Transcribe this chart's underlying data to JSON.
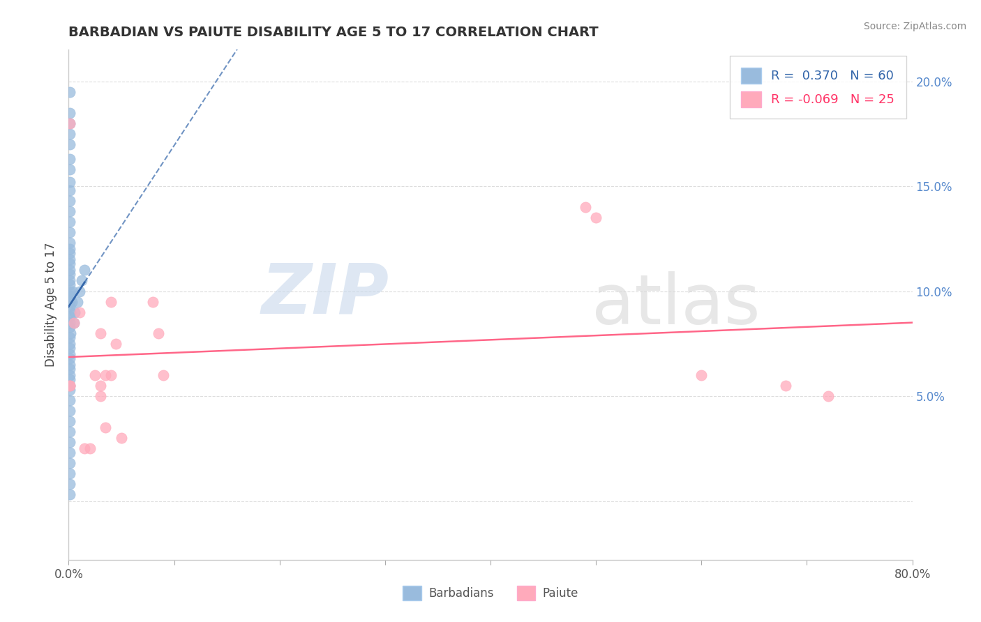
{
  "title": "BARBADIAN VS PAIUTE DISABILITY AGE 5 TO 17 CORRELATION CHART",
  "source_text": "Source: ZipAtlas.com",
  "ylabel": "Disability Age 5 to 17",
  "xlim": [
    0.0,
    0.8
  ],
  "ylim": [
    -0.028,
    0.215
  ],
  "yticks": [
    0.0,
    0.05,
    0.1,
    0.15,
    0.2
  ],
  "ytick_labels": [
    "",
    "5.0%",
    "10.0%",
    "15.0%",
    "20.0%"
  ],
  "xticks": [
    0.0,
    0.1,
    0.2,
    0.3,
    0.4,
    0.5,
    0.6,
    0.7,
    0.8
  ],
  "blue_R": 0.37,
  "blue_N": 60,
  "pink_R": -0.069,
  "pink_N": 25,
  "blue_color": "#99BBDD",
  "pink_color": "#FFAABB",
  "blue_line_color": "#3366AA",
  "pink_line_color": "#FF6688",
  "watermark_color": "#E8EEF5",
  "blue_dots_x": [
    0.001,
    0.001,
    0.001,
    0.001,
    0.001,
    0.001,
    0.001,
    0.001,
    0.001,
    0.001,
    0.001,
    0.001,
    0.001,
    0.001,
    0.001,
    0.001,
    0.001,
    0.001,
    0.001,
    0.001,
    0.001,
    0.001,
    0.001,
    0.001,
    0.001,
    0.001,
    0.001,
    0.001,
    0.001,
    0.001,
    0.001,
    0.001,
    0.001,
    0.001,
    0.001,
    0.001,
    0.001,
    0.001,
    0.001,
    0.001,
    0.001,
    0.001,
    0.001,
    0.001,
    0.001,
    0.001,
    0.001,
    0.001,
    0.001,
    0.001,
    0.002,
    0.002,
    0.003,
    0.004,
    0.005,
    0.006,
    0.008,
    0.01,
    0.012,
    0.015
  ],
  "blue_dots_y": [
    0.195,
    0.185,
    0.18,
    0.175,
    0.17,
    0.163,
    0.158,
    0.152,
    0.148,
    0.143,
    0.138,
    0.133,
    0.128,
    0.123,
    0.118,
    0.113,
    0.108,
    0.103,
    0.098,
    0.093,
    0.088,
    0.083,
    0.078,
    0.073,
    0.068,
    0.063,
    0.058,
    0.053,
    0.048,
    0.043,
    0.038,
    0.033,
    0.028,
    0.023,
    0.018,
    0.013,
    0.008,
    0.003,
    0.075,
    0.07,
    0.065,
    0.06,
    0.055,
    0.085,
    0.095,
    0.1,
    0.105,
    0.11,
    0.115,
    0.12,
    0.09,
    0.08,
    0.095,
    0.1,
    0.085,
    0.09,
    0.095,
    0.1,
    0.105,
    0.11
  ],
  "pink_dots_x": [
    0.001,
    0.001,
    0.001,
    0.005,
    0.01,
    0.015,
    0.02,
    0.025,
    0.03,
    0.035,
    0.04,
    0.045,
    0.03,
    0.04,
    0.05,
    0.03,
    0.035,
    0.08,
    0.085,
    0.09,
    0.49,
    0.5,
    0.6,
    0.68,
    0.72
  ],
  "pink_dots_y": [
    0.055,
    0.055,
    0.18,
    0.085,
    0.09,
    0.025,
    0.025,
    0.06,
    0.08,
    0.06,
    0.095,
    0.075,
    0.055,
    0.06,
    0.03,
    0.05,
    0.035,
    0.095,
    0.08,
    0.06,
    0.14,
    0.135,
    0.06,
    0.055,
    0.05
  ]
}
